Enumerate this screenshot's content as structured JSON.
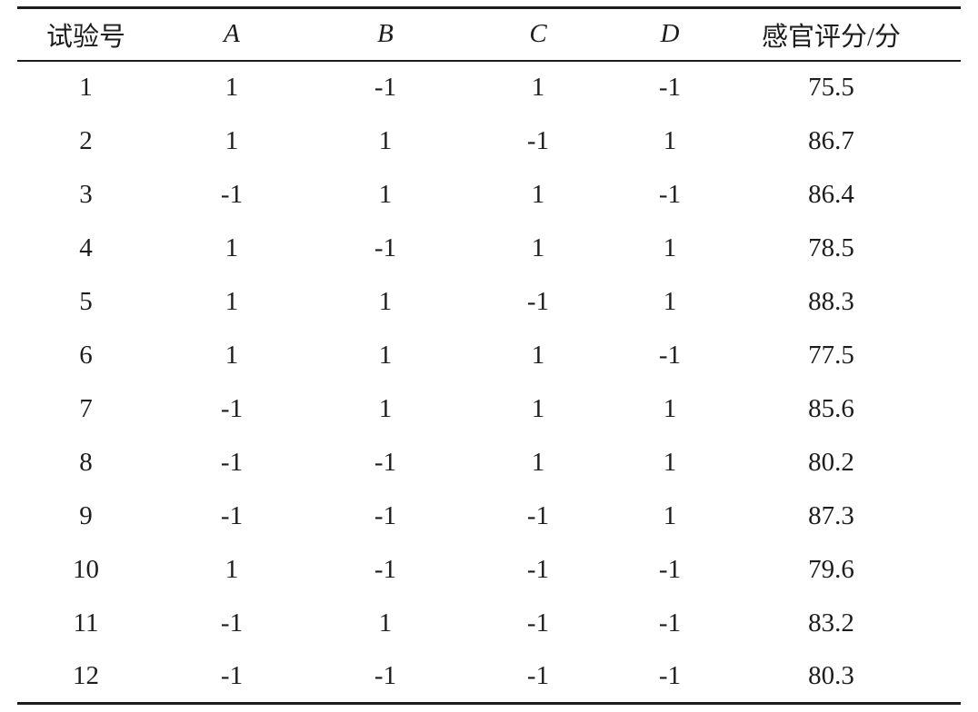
{
  "colors": {
    "background": "#ffffff",
    "rule": "#1c1c1c",
    "text": "#1d1d1d"
  },
  "table": {
    "columns": [
      "试验号",
      "A",
      "B",
      "C",
      "D",
      "感官评分/分"
    ],
    "italic_columns": [
      "A",
      "B",
      "C",
      "D"
    ],
    "rows": [
      [
        "1",
        "1",
        "-1",
        "1",
        "-1",
        "75.5"
      ],
      [
        "2",
        "1",
        "1",
        "-1",
        "1",
        "86.7"
      ],
      [
        "3",
        "-1",
        "1",
        "1",
        "-1",
        "86.4"
      ],
      [
        "4",
        "1",
        "-1",
        "1",
        "1",
        "78.5"
      ],
      [
        "5",
        "1",
        "1",
        "-1",
        "1",
        "88.3"
      ],
      [
        "6",
        "1",
        "1",
        "1",
        "-1",
        "77.5"
      ],
      [
        "7",
        "-1",
        "1",
        "1",
        "1",
        "85.6"
      ],
      [
        "8",
        "-1",
        "-1",
        "1",
        "1",
        "80.2"
      ],
      [
        "9",
        "-1",
        "-1",
        "-1",
        "1",
        "87.3"
      ],
      [
        "10",
        "1",
        "-1",
        "-1",
        "-1",
        "79.6"
      ],
      [
        "11",
        "-1",
        "1",
        "-1",
        "-1",
        "83.2"
      ],
      [
        "12",
        "-1",
        "-1",
        "-1",
        "-1",
        "80.3"
      ]
    ]
  }
}
